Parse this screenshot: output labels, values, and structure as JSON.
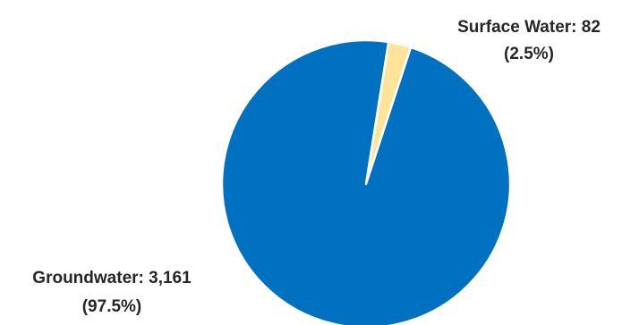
{
  "chart_data": {
    "type": "pie",
    "slices": [
      {
        "category": "Groundwater",
        "value": 3161,
        "value_label": "3,161",
        "percent_label": "(97.5%)",
        "color": "#0070C0"
      },
      {
        "category": "Surface Water",
        "value": 82,
        "value_label": "82",
        "percent_label": "(2.5%)",
        "color": "#FDE49A"
      }
    ],
    "start_angle_deg": 15,
    "direction": "clockwise",
    "legend": "none"
  }
}
